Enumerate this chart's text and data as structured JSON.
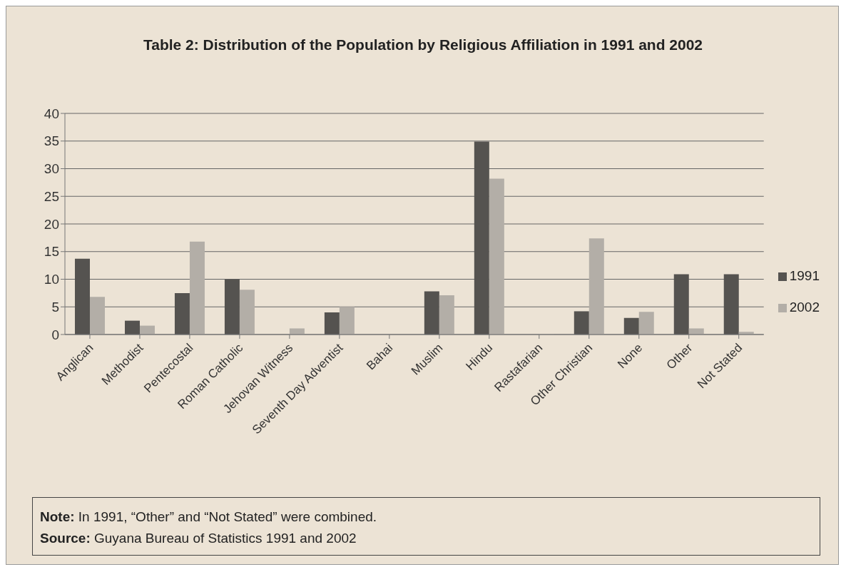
{
  "chart_data": {
    "type": "bar",
    "title": "Table 2: Distribution of the Population by Religious Affiliation in 1991 and 2002",
    "categories": [
      "Anglican",
      "Methodist",
      "Pentecostal",
      "Roman Catholic",
      "Jehovan Witness",
      "Seventh Day Adventist",
      "Bahai",
      "Muslim",
      "Hindu",
      "Rastafarian",
      "Other Christian",
      "None",
      "Other",
      "Not Stated"
    ],
    "series": [
      {
        "name": "1991",
        "color": "#555350",
        "values": [
          13.7,
          2.5,
          7.5,
          10,
          0,
          4,
          0,
          7.8,
          34.9,
          0,
          4.2,
          3,
          10.9,
          10.9
        ]
      },
      {
        "name": "2002",
        "color": "#b3aea7",
        "values": [
          6.8,
          1.6,
          16.8,
          8.1,
          1.1,
          5,
          0,
          7.1,
          28.2,
          0.1,
          17.4,
          4.1,
          1.1,
          0.5
        ]
      }
    ],
    "ylim": [
      0,
      40
    ],
    "yticks": [
      0,
      5,
      10,
      15,
      20,
      25,
      30,
      35,
      40
    ],
    "grid": "y",
    "legend": "right",
    "annotations": [
      "Note: In 1991, “Other” and “Not Stated” were combined.",
      "Source: Guyana Bureau of Statistics 1991 and 2002"
    ]
  }
}
